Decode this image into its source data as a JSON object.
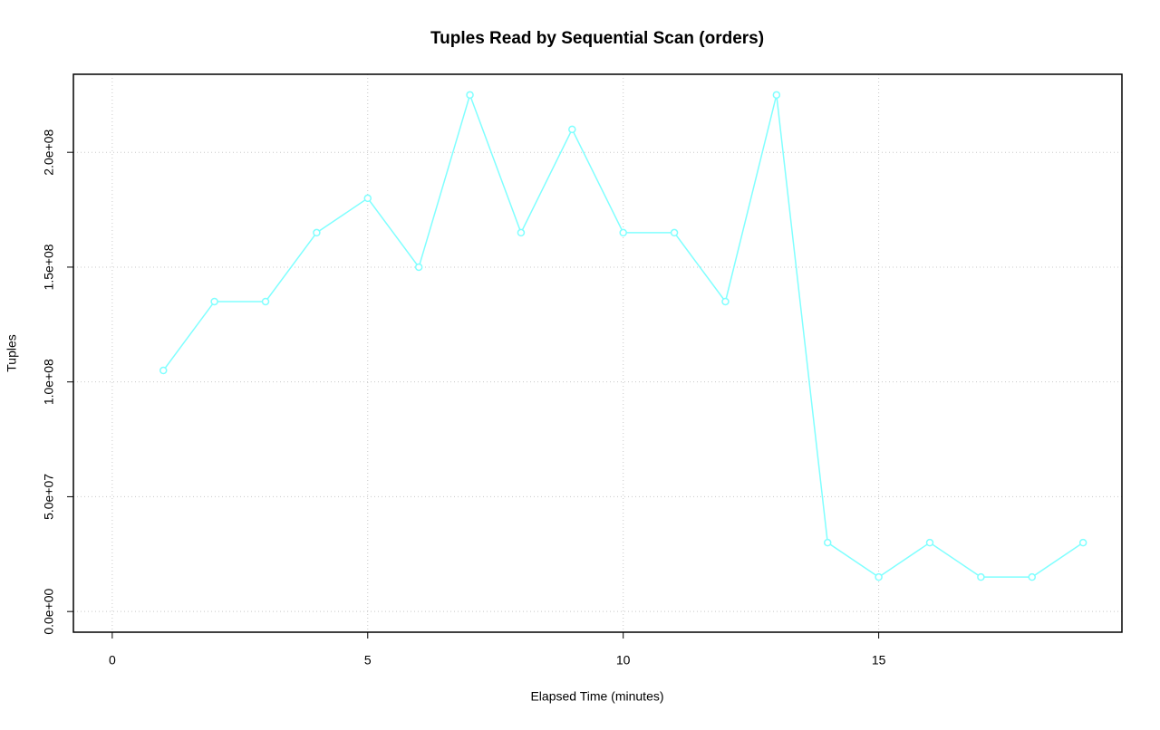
{
  "chart_data": {
    "type": "line",
    "title": "Tuples Read by Sequential Scan (orders)",
    "x_label": "Elapsed Time (minutes)",
    "y_label": "Tuples",
    "x": [
      1,
      2,
      3,
      4,
      5,
      6,
      7,
      8,
      9,
      10,
      11,
      12,
      13,
      14,
      15,
      16,
      17,
      18,
      19
    ],
    "series": [
      {
        "color": "#80ffff",
        "values": [
          105000000,
          135000000,
          135000000,
          165000000,
          180000000,
          150000000,
          225000000,
          165000000,
          210000000,
          165000000,
          165000000,
          135000000,
          225000000,
          30000000,
          15000000,
          30000000,
          15000000,
          15000000,
          30000000
        ]
      }
    ],
    "xlim": [
      -0.76,
      19.76
    ],
    "ylim": [
      -9000000,
      234000000
    ],
    "xticks": [
      0,
      5,
      10,
      15
    ],
    "yticks": [
      {
        "value": 0,
        "label": "0.0e+00"
      },
      {
        "value": 50000000,
        "label": "5.0e+07"
      },
      {
        "value": 100000000,
        "label": "1.0e+08"
      },
      {
        "value": 150000000,
        "label": "1.5e+08"
      },
      {
        "value": 200000000,
        "label": "2.0e+08"
      }
    ],
    "grid": true
  }
}
